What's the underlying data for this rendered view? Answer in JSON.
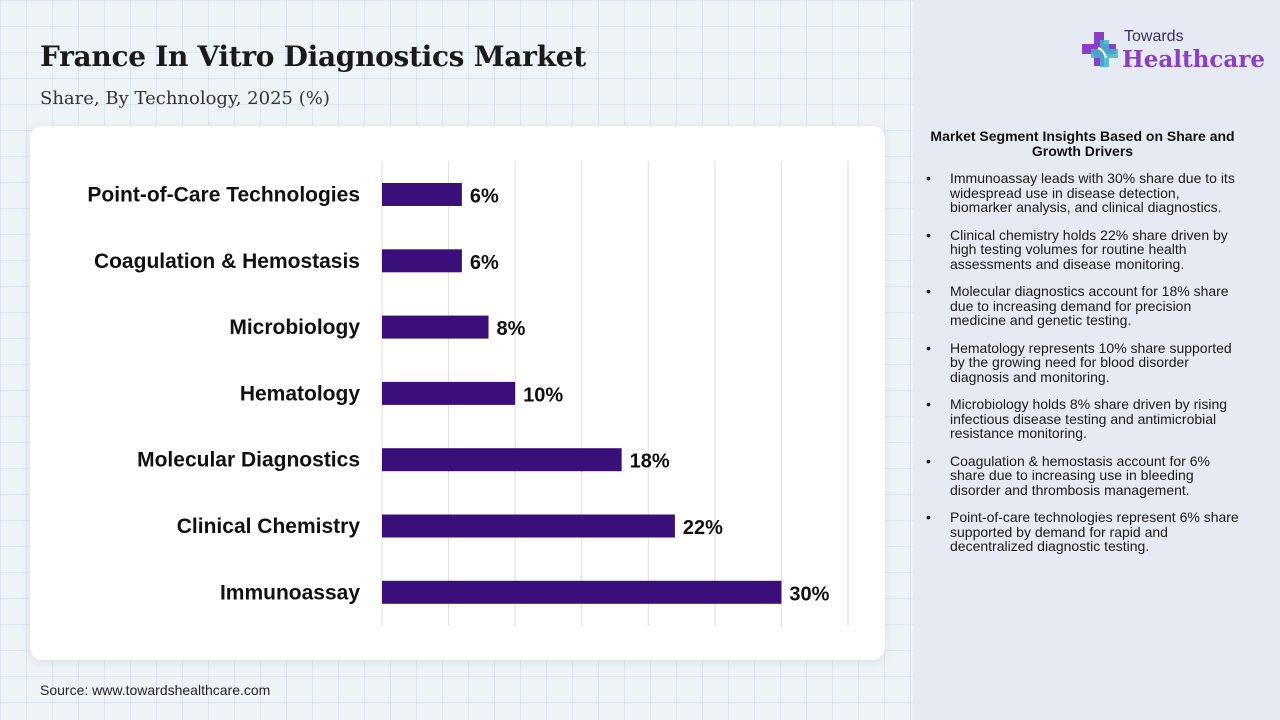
{
  "header": {
    "title": "France In Vitro Diagnostics Market",
    "subtitle": "Share, By Technology, 2025 (%)"
  },
  "chart_data": {
    "type": "bar",
    "orientation": "horizontal",
    "categories": [
      "Point-of-Care Technologies",
      "Coagulation & Hemostasis",
      "Microbiology",
      "Hematology",
      "Molecular Diagnostics",
      "Clinical Chemistry",
      "Immunoassay"
    ],
    "values": [
      6,
      6,
      8,
      10,
      18,
      22,
      30
    ],
    "value_labels": [
      "6%",
      "6%",
      "8%",
      "10%",
      "18%",
      "22%",
      "30%"
    ],
    "xlim": [
      0,
      35
    ],
    "grid": true,
    "bar_color": "#3b0f7a"
  },
  "source": "Source: www.towardshealthcare.com",
  "logo": {
    "top_text": "Towards",
    "main_text": "Healthcare",
    "icon": "cross-plus-icon",
    "colors": [
      "#8a3fc8",
      "#3fb6c8"
    ]
  },
  "insights": {
    "title": "Market Segment Insights Based on Share and Growth Drivers",
    "bullet": "•",
    "items": [
      "Immunoassay leads with 30% share due to its widespread use in disease detection, biomarker analysis, and clinical diagnostics.",
      "Clinical chemistry holds 22% share driven by high testing volumes for routine health assessments and disease monitoring.",
      "Molecular diagnostics account for 18% share due to increasing demand for precision medicine and genetic testing.",
      "Hematology represents 10% share supported by the growing need for blood disorder diagnosis and monitoring.",
      "Microbiology holds 8% share driven by rising infectious disease testing and antimicrobial resistance monitoring.",
      "Coagulation & hemostasis account for 6% share due to increasing use in bleeding disorder and thrombosis management.",
      "Point-of-care technologies represent 6% share supported by demand for rapid and decentralized diagnostic testing."
    ]
  }
}
